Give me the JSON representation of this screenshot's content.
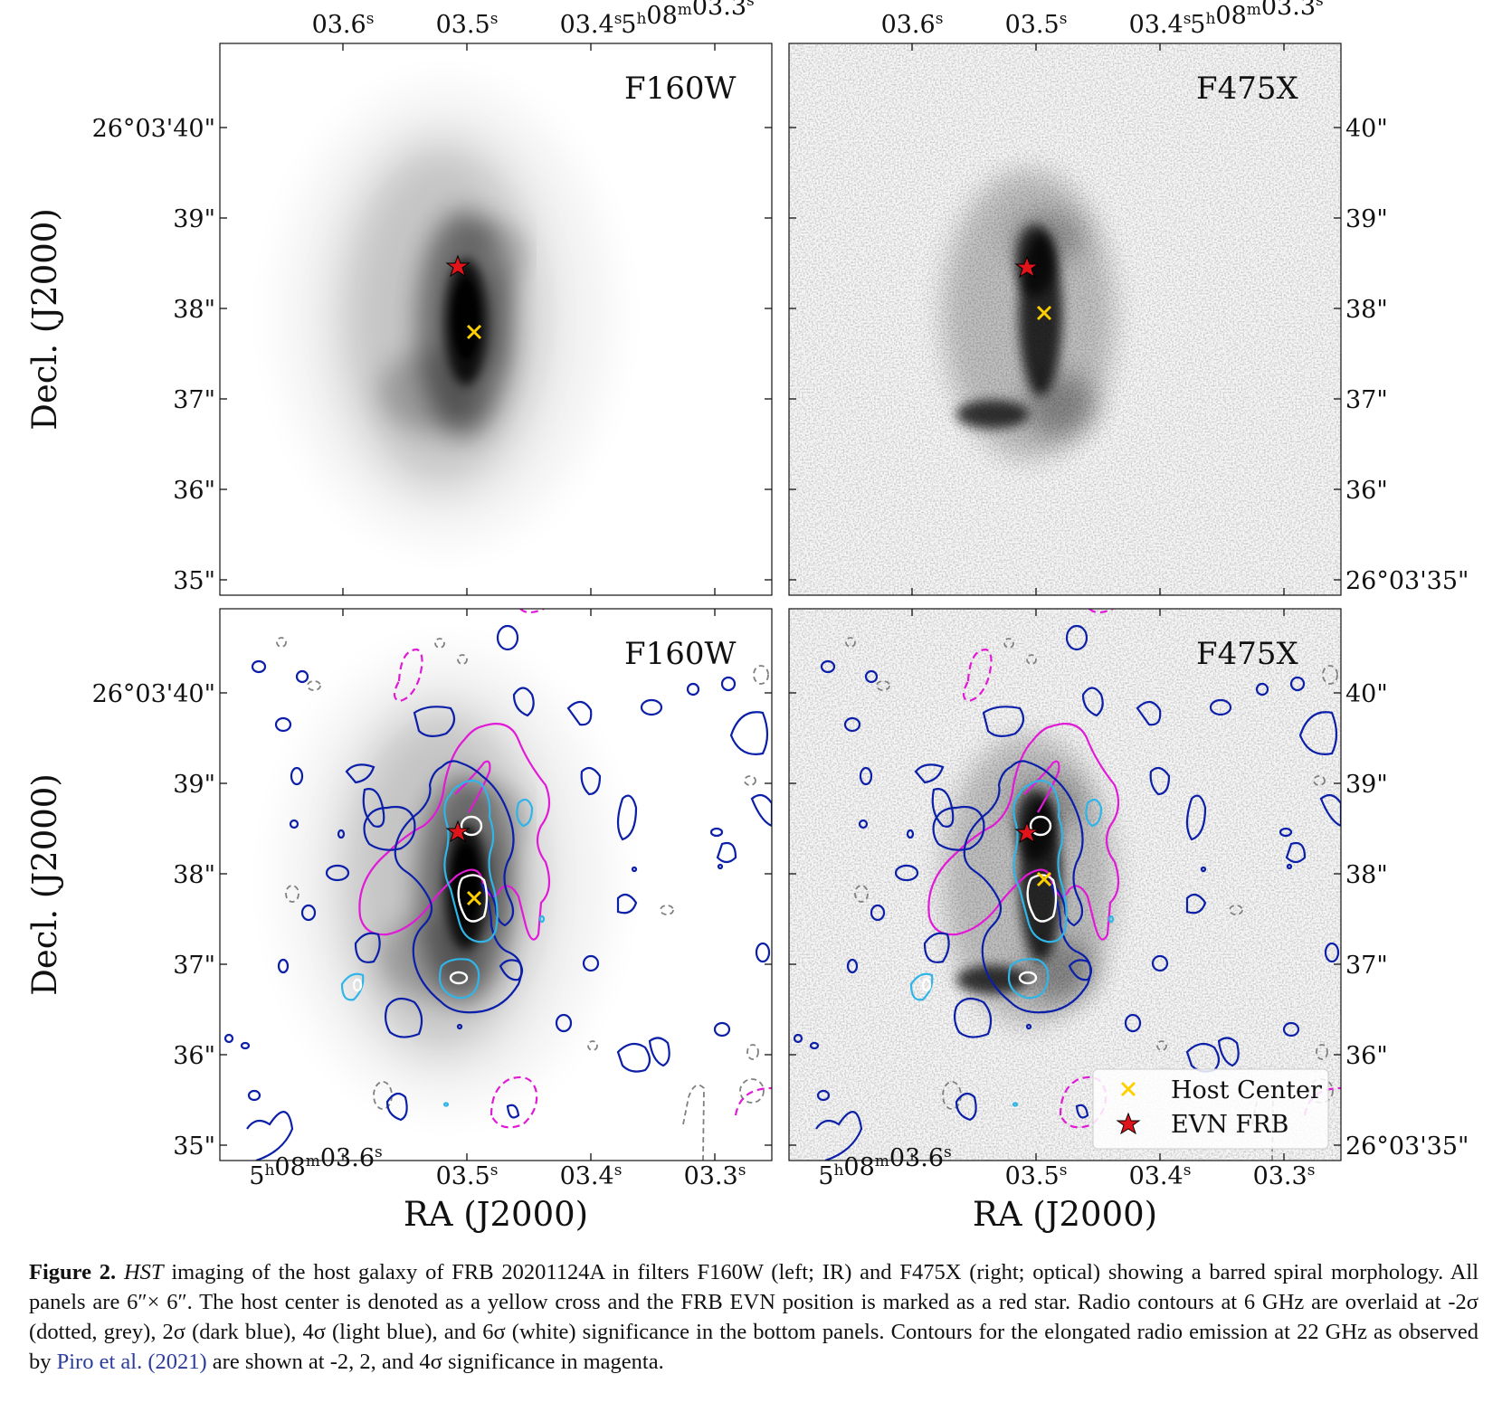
{
  "figure": {
    "ra_ticks_top_left": [
      "03.6",
      "03.5",
      "03.4",
      "5h08m03.3"
    ],
    "ra_ticks_top_right": [
      "03.6",
      "03.5",
      "03.4",
      "5h08m03.3"
    ],
    "ra_ticks_bottom_left": [
      "5h08m03.6",
      "03.5",
      "03.4",
      "03.3"
    ],
    "ra_ticks_bottom_right": [
      "5h08m03.6",
      "03.5",
      "03.4",
      "03.3"
    ],
    "dec_ticks_left": [
      "26°03'40\"",
      "39\"",
      "38\"",
      "37\"",
      "36\"",
      "35\""
    ],
    "dec_ticks_right": [
      "40\"",
      "39\"",
      "38\"",
      "37\"",
      "36\"",
      "26°03'35\""
    ],
    "xlabel": "RA (J2000)",
    "ylabel": "Decl. (J2000)",
    "panels": [
      {
        "filter": "F160W"
      },
      {
        "filter": "F475X"
      },
      {
        "filter": "F160W"
      },
      {
        "filter": "F475X"
      }
    ],
    "legend": {
      "host_center": "Host Center",
      "evn_frb": "EVN FRB"
    },
    "colors": {
      "host_center": "#ffd000",
      "evn_frb": "#e0141b",
      "contour_neg2sigma": "#808080",
      "contour_2sigma": "#0b1fa8",
      "contour_4sigma": "#2fb5e8",
      "contour_6sigma": "#ffffff",
      "contour_22ghz": "#e01ad6"
    }
  },
  "caption": {
    "label": "Figure 2.",
    "telescope": "HST",
    "text_1": " imaging of the host galaxy of FRB 20201124A in filters F160W (left; IR) and F475X (right; optical) showing a barred spiral morphology. All panels are 6″× 6″. The host center is denoted as a yellow cross and the FRB EVN position is marked as a red star. Radio contours at 6 GHz are overlaid at -2σ (dotted, grey), 2σ (dark blue), 4σ (light blue), and 6σ (white) significance in the bottom panels. Contours for the elongated radio emission at 22 GHz as observed by ",
    "ref": "Piro et al. (2021)",
    "text_2": " are shown at -2, 2, and 4σ significance in magenta."
  }
}
